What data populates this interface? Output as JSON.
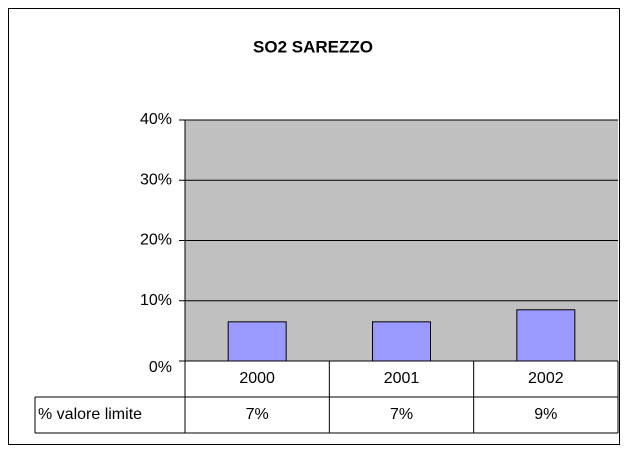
{
  "chart_data": {
    "type": "bar",
    "title": "SO2 SAREZZO",
    "categories": [
      "2000",
      "2001",
      "2002"
    ],
    "values": [
      6.5,
      6.5,
      8.5
    ],
    "value_labels": [
      "7%",
      "7%",
      "9%"
    ],
    "table_row_label": "% valore limite",
    "color": "#9999ff",
    "ylim": [
      0,
      40
    ],
    "yticks": [
      {
        "value": 0,
        "label": "0%"
      },
      {
        "value": 10,
        "label": "10%"
      },
      {
        "value": 20,
        "label": "20%"
      },
      {
        "value": 30,
        "label": "30%"
      },
      {
        "value": 40,
        "label": "40%"
      }
    ],
    "grid": true
  }
}
